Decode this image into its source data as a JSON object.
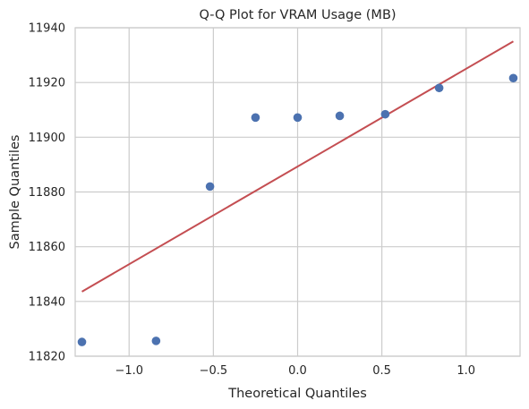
{
  "chart_data": {
    "type": "scatter",
    "title": "Q-Q Plot for VRAM Usage (MB)",
    "xlabel": "Theoretical Quantiles",
    "ylabel": "Sample Quantiles",
    "xlim": [
      -1.32,
      1.32
    ],
    "ylim": [
      11820,
      11940
    ],
    "x_ticks": [
      -1.0,
      -0.5,
      0.0,
      0.5,
      1.0
    ],
    "x_tick_labels": [
      "−1.0",
      "−0.5",
      "0.0",
      "0.5",
      "1.0"
    ],
    "y_ticks": [
      11820,
      11840,
      11860,
      11880,
      11900,
      11920,
      11940
    ],
    "y_tick_labels": [
      "11820",
      "11840",
      "11860",
      "11880",
      "11900",
      "11920",
      "11940"
    ],
    "grid": true,
    "series": [
      {
        "type": "scatter",
        "color": "#4c72b0",
        "points": [
          {
            "x": -1.28,
            "y": 11825.2
          },
          {
            "x": -0.84,
            "y": 11825.6
          },
          {
            "x": -0.52,
            "y": 11882.0
          },
          {
            "x": -0.25,
            "y": 11907.2
          },
          {
            "x": 0.0,
            "y": 11907.2
          },
          {
            "x": 0.25,
            "y": 11907.8
          },
          {
            "x": 0.52,
            "y": 11908.4
          },
          {
            "x": 0.84,
            "y": 11918.0
          },
          {
            "x": 1.28,
            "y": 11921.6
          }
        ]
      },
      {
        "type": "line",
        "color": "#c44e52",
        "points": [
          {
            "x": -1.28,
            "y": 11843.6
          },
          {
            "x": 1.28,
            "y": 11935.0
          }
        ]
      }
    ]
  }
}
